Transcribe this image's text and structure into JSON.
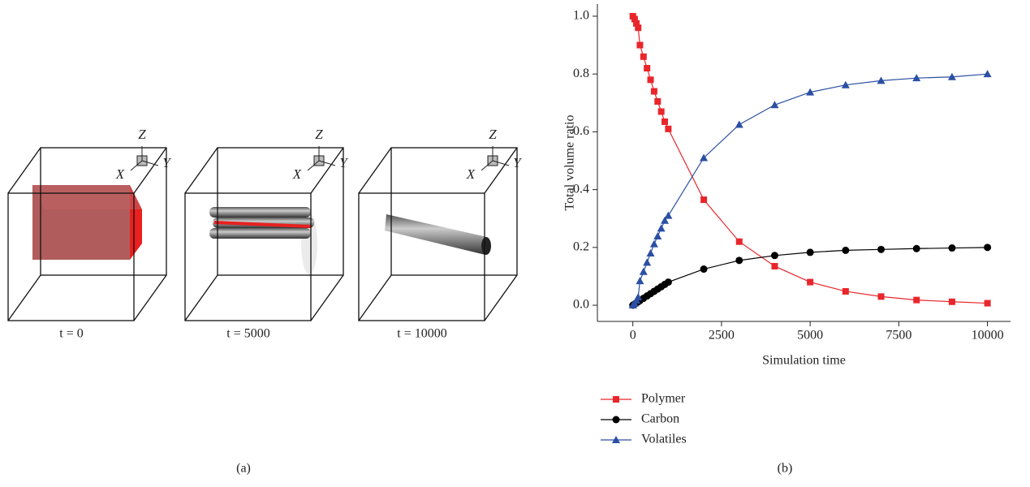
{
  "panel_a": {
    "caption": "(a)",
    "axes": {
      "x": "X",
      "y": "Y",
      "z": "Z"
    },
    "snapshots": [
      "t = 0",
      "t = 5000",
      "t = 10000"
    ]
  },
  "chart_data": {
    "type": "line",
    "caption": "(b)",
    "xlabel": "Simulation time",
    "ylabel": "Total volume ratio",
    "xlim": [
      -1000,
      10650
    ],
    "xticks": [
      0,
      2500,
      5000,
      7500,
      10000
    ],
    "ylim": [
      -0.056,
      1.042
    ],
    "yticks": [
      {
        "value": 0,
        "label": "0.0"
      },
      0.2,
      0.4,
      0.6,
      0.8,
      {
        "value": 1,
        "label": "1.0"
      }
    ],
    "x": [
      0,
      50,
      100,
      150,
      200,
      300,
      400,
      500,
      600,
      700,
      800,
      900,
      1000,
      2000,
      3000,
      4000,
      5000,
      6000,
      7000,
      8000,
      9000,
      10000
    ],
    "series": [
      {
        "name": "Polymer",
        "color": "#e8262b",
        "marker": "square",
        "values": [
          1.0,
          0.99,
          0.975,
          0.96,
          0.9,
          0.86,
          0.82,
          0.78,
          0.74,
          0.705,
          0.67,
          0.635,
          0.61,
          0.365,
          0.22,
          0.135,
          0.08,
          0.048,
          0.03,
          0.018,
          0.012,
          0.007
        ]
      },
      {
        "name": "Carbon",
        "color": "#000000",
        "marker": "circle",
        "values": [
          0,
          0.004,
          0.008,
          0.012,
          0.016,
          0.024,
          0.032,
          0.04,
          0.048,
          0.056,
          0.064,
          0.072,
          0.08,
          0.125,
          0.155,
          0.172,
          0.183,
          0.19,
          0.193,
          0.196,
          0.198,
          0.2
        ]
      },
      {
        "name": "Volatiles",
        "color": "#2b4fa2",
        "marker": "triangle",
        "values": [
          0,
          0.006,
          0.017,
          0.028,
          0.084,
          0.116,
          0.148,
          0.18,
          0.212,
          0.239,
          0.266,
          0.293,
          0.31,
          0.51,
          0.625,
          0.693,
          0.737,
          0.762,
          0.777,
          0.786,
          0.79,
          0.8
        ]
      }
    ]
  }
}
